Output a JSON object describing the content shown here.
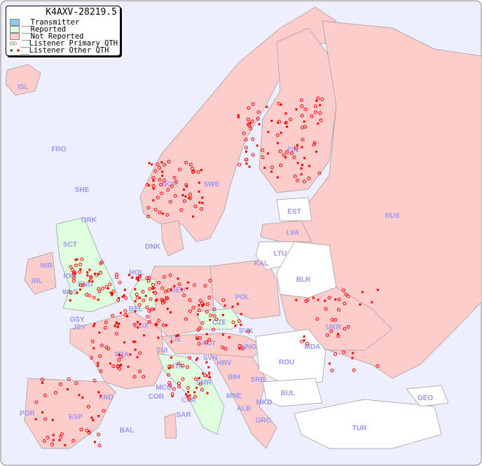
{
  "legend": {
    "title": "K4AXV-28219.5",
    "items": [
      {
        "label": "__Transmitter",
        "color": "#88ccee"
      },
      {
        "label": "__Reported",
        "color": "#ddffdd"
      },
      {
        "label": "__Not Reported",
        "color": "#ffcccc"
      },
      {
        "label": "__Listener Primary QTH",
        "marker": "circle",
        "colors": [
          "#006600",
          "#ff0000"
        ]
      },
      {
        "label": "__Listener Other QTH",
        "marker": "square",
        "colors": [
          "#006600",
          "#ff0000"
        ]
      }
    ]
  },
  "colors": {
    "sea": "#eeeeff",
    "reported": "#ddffdd",
    "not_reported": "#ffcccc",
    "no_data": "#ffffff",
    "listener": "#ff0000",
    "label": "#9999ee"
  },
  "countries": [
    "ISL",
    "FRO",
    "SHE",
    "ORK",
    "NOR",
    "SWE",
    "FIN",
    "EST",
    "RUS",
    "LVA",
    "DNK",
    "LTU",
    "KAL",
    "BLR",
    "HOL",
    "IRL",
    "NIR",
    "SCT",
    "IOM",
    "WLS",
    "ENG",
    "DEU",
    "POL",
    "BEL",
    "LUX",
    "GSY",
    "JSY",
    "CZE",
    "SVK",
    "UKR",
    "FRA",
    "SUI",
    "LIE",
    "AUT",
    "HNG",
    "MDA",
    "SVN",
    "HRV",
    "ROU",
    "ITA",
    "BIH",
    "SRB",
    "SMR",
    "MCO",
    "COR",
    "AND",
    "ESP",
    "POR",
    "MNE",
    "BUL",
    "GEO",
    "ALB",
    "MKD",
    "CVA",
    "SAR",
    "BAL",
    "GRC",
    "TUR"
  ]
}
